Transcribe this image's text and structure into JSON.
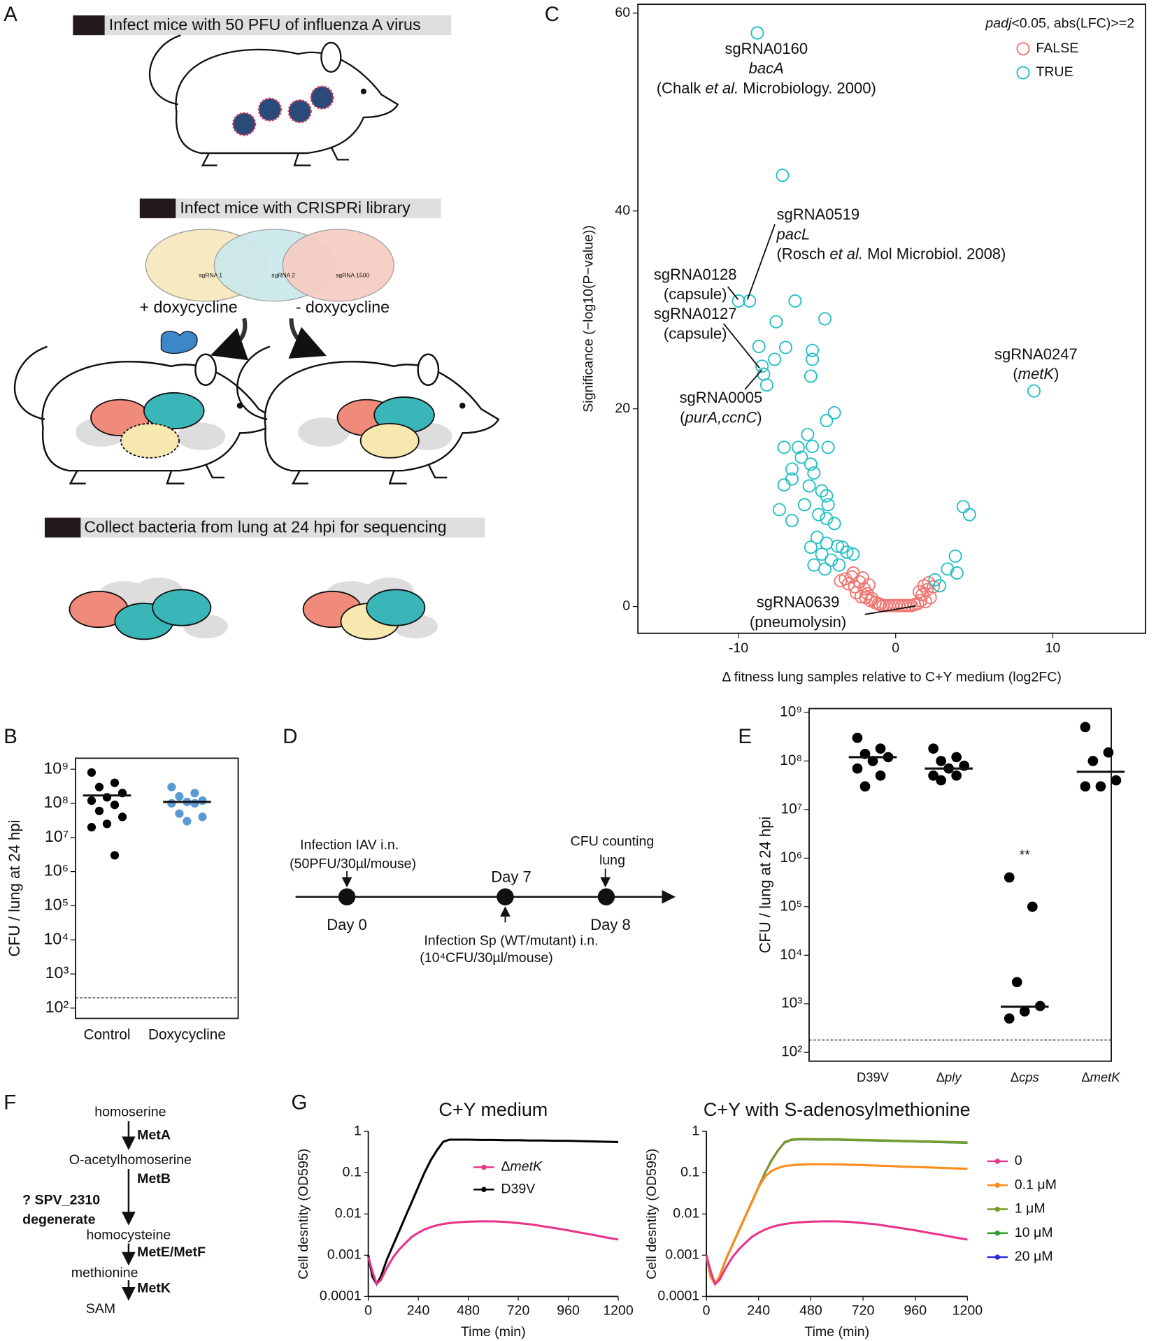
{
  "panel_labels": [
    "A",
    "B",
    "C",
    "D",
    "E",
    "F",
    "G"
  ],
  "panel_a": {
    "step1": "Infect mice with 50 PFU of influenza A virus",
    "step2": "Infect mice with CRISPRi library",
    "plasmid_labels": [
      "sgRNA 1",
      "sgRNA 2",
      "sgRNA 1500"
    ],
    "plus_dox": "+ doxycycline",
    "minus_dox": "- doxycycline",
    "step3": "Collect bacteria from lung at 24 hpi for sequencing"
  },
  "panel_d": {
    "iav": "Infection IAV i.n.",
    "iav_dose": "(50PFU/30µl/mouse)",
    "day0": "Day 0",
    "day7": "Day 7",
    "day8": "Day 8",
    "cfu": "CFU counting",
    "lung": "lung",
    "sp": "Infection Sp (WT/mutant) i.n.",
    "sp_dose": "(10⁴CFU/30µl/mouse)"
  },
  "panel_f": {
    "homoserine": "homoserine",
    "meta": "MetA",
    "oacetyl": "O-acetylhomoserine",
    "metb": "MetB",
    "spv": "? SPV_2310",
    "degenerate": "degenerate",
    "homocysteine": "homocysteine",
    "metef": "MetE/MetF",
    "methionine": "methionine",
    "metk": "MetK",
    "sam": "SAM"
  },
  "chart_data": [
    {
      "type": "scatter",
      "x_label": "Δ fitness lung samples relative to C+Y medium (log2FC)",
      "y_label": "Significance (−log10(P−value))",
      "xlim": [
        -16.4,
        15.9
      ],
      "ylim": [
        -2.7,
        60.9
      ],
      "xticks": [
        -10,
        0,
        10
      ],
      "yticks": [
        0,
        20,
        40,
        60
      ],
      "legend_title": [
        {
          "text": "padj",
          "italic": true
        },
        "<0.05, abs(LFC)>=2"
      ],
      "series": [
        {
          "name": "FALSE",
          "color": "#f07470",
          "x": [
            -3.2,
            -3.0,
            -2.8,
            -2.6,
            -2.5,
            -2.3,
            -2.2,
            -2.0,
            -1.9,
            -1.8,
            -1.6,
            -1.5,
            -1.3,
            -1.1,
            -1.0,
            -0.8,
            -0.6,
            -0.4,
            -0.2,
            0,
            0.2,
            0.4,
            0.6,
            0.8,
            1.0,
            1.2,
            1.4,
            1.6,
            1.7,
            1.8,
            2.0,
            2.1,
            2.2,
            2.4,
            -2.7,
            -2.1,
            -1.7,
            1.5,
            1.9,
            -3.5
          ],
          "values": [
            2.8,
            2.3,
            3.0,
            2.0,
            1.4,
            2.5,
            1.0,
            1.8,
            0.9,
            1.3,
            0.6,
            0.8,
            0.4,
            0.3,
            0.2,
            0.1,
            0.1,
            0.1,
            0.1,
            0.1,
            0.1,
            0.1,
            0.1,
            0.1,
            0.1,
            0.2,
            0.3,
            0.6,
            1.2,
            2.1,
            1.7,
            2.4,
            0.9,
            2.0,
            3.4,
            2.9,
            2.2,
            1.5,
            0.5,
            2.6
          ]
        },
        {
          "name": "TRUE",
          "color": "#1fbfc4",
          "x": [
            -8.8,
            -7.2,
            -10.0,
            -9.3,
            -6.4,
            -7.6,
            -4.5,
            -8.7,
            -7.0,
            -5.3,
            -5.3,
            -7.7,
            -8.5,
            -8.4,
            -5.4,
            -8.2,
            8.8,
            -3.9,
            -4.4,
            -5.6,
            -5.3,
            -7.1,
            -6.2,
            -4.3,
            -6.0,
            -5.4,
            -6.6,
            -5.2,
            -6.6,
            -7.1,
            -5.5,
            -4.7,
            -4.4,
            -5.8,
            -4.3,
            -7.4,
            -4.9,
            -6.6,
            -4.4,
            -3.9,
            -5.0,
            -4.4,
            -3.7,
            -3.4,
            -5.4,
            -4.7,
            -3.1,
            -2.7,
            -4.1,
            -3.6,
            -5.2,
            -4.5,
            4.3,
            4.7,
            3.8,
            3.3,
            3.9,
            2.8,
            2.5
          ],
          "values": [
            58.0,
            43.6,
            30.9,
            30.9,
            30.9,
            28.8,
            29.1,
            26.3,
            26.2,
            25.9,
            25.0,
            25.0,
            24.3,
            23.5,
            23.3,
            22.4,
            21.8,
            19.6,
            18.8,
            17.4,
            16.2,
            16.1,
            16.1,
            16.1,
            15.1,
            14.4,
            13.9,
            13.5,
            12.9,
            12.3,
            12.2,
            11.7,
            11.2,
            10.3,
            10.3,
            9.8,
            9.3,
            8.7,
            8.9,
            8.4,
            7.0,
            6.4,
            6.1,
            6.0,
            6.0,
            5.3,
            5.5,
            5.3,
            4.7,
            4.2,
            4.2,
            3.8,
            10.1,
            9.3,
            5.1,
            3.8,
            3.4,
            2.1,
            2.7
          ]
        }
      ],
      "annotations": [
        {
          "lines": [
            "sgRNA0160",
            [
              {
                "text": "bacA",
                "italic": true
              }
            ],
            [
              "(Chalk ",
              {
                "text": "et al.",
                "italic": true
              },
              " Microbiology. 2000)"
            ]
          ]
        },
        {
          "lines": [
            "sgRNA0519",
            [
              {
                "text": "pacL",
                "italic": true
              }
            ],
            [
              "(Rosch ",
              {
                "text": "et al.",
                "italic": true
              },
              " Mol Microbiol. 2008)"
            ]
          ]
        },
        {
          "lines": [
            "sgRNA0128",
            "(capsule)"
          ]
        },
        {
          "lines": [
            "sgRNA0127",
            "(capsule)"
          ]
        },
        {
          "lines": [
            "sgRNA0005",
            [
              "(",
              {
                "text": "purA,ccnC",
                "italic": true
              },
              ")"
            ]
          ]
        },
        {
          "lines": [
            "sgRNA0247",
            [
              "(",
              {
                "text": "metK",
                "italic": true
              },
              ")"
            ]
          ]
        },
        {
          "lines": [
            "sgRNA0639",
            "(pneumolysin)"
          ]
        }
      ]
    },
    {
      "type": "strip",
      "y_label": "CFU / lung at 24 hpi",
      "categories": [
        "Control",
        "Doxycycline"
      ],
      "log_y": true,
      "ylim": [
        50,
        2100000000
      ],
      "yticks": [
        {
          "value": 100,
          "label": "10²"
        },
        {
          "value": 1000,
          "label": "10³"
        },
        {
          "value": 10000,
          "label": "10⁴"
        },
        {
          "value": 100000,
          "label": "10⁵"
        },
        {
          "value": 1000000,
          "label": "10⁶"
        },
        {
          "value": 10000000,
          "label": "10⁷"
        },
        {
          "value": 100000000,
          "label": "10⁸"
        },
        {
          "value": 1000000000,
          "label": "10⁹"
        }
      ],
      "colors": [
        "#000000",
        "#5b9bd5"
      ],
      "values": [
        [
          800000000,
          400000000,
          300000000,
          200000000,
          150000000,
          120000000,
          90000000,
          60000000,
          40000000,
          25000000,
          20000000,
          3000000
        ],
        [
          300000000,
          200000000,
          160000000,
          120000000,
          110000000,
          100000000,
          100000000,
          50000000,
          40000000,
          30000000
        ]
      ],
      "medians": [
        170000000,
        110000000
      ],
      "detection_limit": 200
    },
    {
      "type": "strip",
      "y_label": "CFU / lung at 24 hpi",
      "categories": [
        "D39V",
        [
          "Δ",
          {
            "text": "ply",
            "italic": true
          }
        ],
        [
          "Δ",
          {
            "text": "cps",
            "italic": true
          }
        ],
        [
          "Δ",
          {
            "text": "metK",
            "italic": true
          }
        ]
      ],
      "log_y": true,
      "ylim": [
        66,
        1200000000
      ],
      "yticks": [
        {
          "value": 100,
          "label": "10²"
        },
        {
          "value": 1000,
          "label": "10³"
        },
        {
          "value": 10000,
          "label": "10⁴"
        },
        {
          "value": 100000,
          "label": "10⁵"
        },
        {
          "value": 1000000,
          "label": "10⁶"
        },
        {
          "value": 10000000,
          "label": "10⁷"
        },
        {
          "value": 100000000,
          "label": "10⁸"
        },
        {
          "value": 1000000000,
          "label": "10⁹"
        }
      ],
      "colors": [
        "#000000",
        "#000000",
        "#000000",
        "#000000"
      ],
      "values": [
        [
          300000000,
          180000000,
          140000000,
          120000000,
          100000000,
          70000000,
          50000000,
          30000000
        ],
        [
          180000000,
          120000000,
          100000000,
          80000000,
          70000000,
          50000000,
          50000000,
          40000000
        ],
        [
          400000,
          100000,
          2800,
          900,
          700,
          500
        ],
        [
          500000000,
          150000000,
          100000000,
          40000000,
          30000000,
          30000000
        ]
      ],
      "medians": [
        120000000,
        70000000,
        870,
        60000000
      ],
      "detection_limit": 180,
      "significance": "**"
    },
    {
      "type": "line",
      "title": "C+Y medium",
      "x_label": "Time (min)",
      "y_label": "Cell desntity (OD595)",
      "log_y": true,
      "xlim": [
        0,
        1200
      ],
      "xticks": [
        0,
        240,
        480,
        720,
        960,
        1200
      ],
      "ylim": [
        0.0001,
        1
      ],
      "yticks": [
        1,
        0.1,
        0.01,
        0.001,
        0.0001
      ],
      "x": [
        0,
        20,
        40,
        60,
        90,
        120,
        150,
        180,
        210,
        240,
        270,
        300,
        330,
        360,
        390,
        420,
        480,
        540,
        600,
        660,
        720,
        780,
        840,
        900,
        960,
        1020,
        1080,
        1140,
        1200
      ],
      "series": [
        {
          "name": [
            "Δ",
            {
              "text": "metK",
              "italic": true
            }
          ],
          "color": "#e8338a",
          "values": [
            0.0009,
            0.0004,
            0.0002,
            0.00025,
            0.0005,
            0.0009,
            0.0014,
            0.002,
            0.0028,
            0.0035,
            0.0042,
            0.0048,
            0.0053,
            0.0057,
            0.006,
            0.0062,
            0.0065,
            0.0066,
            0.0066,
            0.0064,
            0.006,
            0.0056,
            0.005,
            0.0045,
            0.004,
            0.0035,
            0.0031,
            0.0027,
            0.0024
          ]
        },
        {
          "name": "D39V",
          "color": "#000000",
          "values": [
            0.001,
            0.0003,
            0.0002,
            0.0003,
            0.0008,
            0.0018,
            0.004,
            0.009,
            0.02,
            0.045,
            0.1,
            0.2,
            0.35,
            0.56,
            0.63,
            0.63,
            0.63,
            0.62,
            0.62,
            0.61,
            0.61,
            0.6,
            0.6,
            0.59,
            0.59,
            0.58,
            0.57,
            0.56,
            0.55
          ]
        }
      ]
    },
    {
      "type": "line",
      "title": "C+Y with S-adenosylmethionine",
      "x_label": "Time (min)",
      "y_label": "Cell desntity (OD595)",
      "log_y": true,
      "xlim": [
        0,
        1200
      ],
      "xticks": [
        0,
        240,
        480,
        720,
        960,
        1200
      ],
      "ylim": [
        0.0001,
        1
      ],
      "yticks": [
        1,
        0.1,
        0.01,
        0.001,
        0.0001
      ],
      "x": [
        0,
        20,
        40,
        60,
        90,
        120,
        150,
        180,
        210,
        240,
        270,
        300,
        330,
        360,
        390,
        420,
        480,
        540,
        600,
        660,
        720,
        780,
        840,
        900,
        960,
        1020,
        1080,
        1140,
        1200
      ],
      "series": [
        {
          "name": "0",
          "color": "#e8338a",
          "values": [
            0.001,
            0.0004,
            0.0002,
            0.00025,
            0.0005,
            0.0009,
            0.0014,
            0.002,
            0.0028,
            0.0035,
            0.0042,
            0.0048,
            0.0053,
            0.0057,
            0.006,
            0.0062,
            0.0065,
            0.0066,
            0.0066,
            0.0064,
            0.006,
            0.0056,
            0.005,
            0.0045,
            0.004,
            0.0035,
            0.0031,
            0.0027,
            0.0024
          ]
        },
        {
          "name": "0.1 μM",
          "color": "#ff8c1a",
          "values": [
            0.001,
            0.0003,
            0.0002,
            0.0003,
            0.0008,
            0.0018,
            0.004,
            0.009,
            0.02,
            0.045,
            0.08,
            0.11,
            0.13,
            0.145,
            0.15,
            0.155,
            0.16,
            0.16,
            0.158,
            0.155,
            0.152,
            0.148,
            0.145,
            0.14,
            0.137,
            0.134,
            0.13,
            0.127,
            0.124
          ]
        },
        {
          "name": "1 μM",
          "color": "#7a9a2a",
          "values": [
            0.001,
            0.0003,
            0.0002,
            0.0003,
            0.0008,
            0.0018,
            0.004,
            0.009,
            0.02,
            0.045,
            0.1,
            0.2,
            0.35,
            0.55,
            0.63,
            0.65,
            0.65,
            0.64,
            0.64,
            0.63,
            0.62,
            0.61,
            0.6,
            0.59,
            0.58,
            0.57,
            0.56,
            0.55,
            0.54
          ]
        },
        {
          "name": "10 μM",
          "color": "#2e9e2e",
          "values": [
            0.001,
            0.0003,
            0.0002,
            0.0003,
            0.0008,
            0.0018,
            0.004,
            0.009,
            0.02,
            0.045,
            0.1,
            0.2,
            0.35,
            0.54,
            0.62,
            0.64,
            0.64,
            0.63,
            0.63,
            0.62,
            0.61,
            0.6,
            0.59,
            0.58,
            0.57,
            0.56,
            0.55,
            0.54,
            0.53
          ]
        },
        {
          "name": "20 μM",
          "color": "#2828e0",
          "values": [
            0.001,
            0.0003,
            0.0002,
            0.0003,
            0.0008,
            0.0018,
            0.004,
            0.009,
            0.02,
            0.045,
            0.1,
            0.2,
            0.35,
            0.54,
            0.62,
            0.64,
            0.64,
            0.63,
            0.63,
            0.62,
            0.61,
            0.6,
            0.59,
            0.58,
            0.57,
            0.56,
            0.55,
            0.54,
            0.53
          ]
        }
      ]
    }
  ]
}
